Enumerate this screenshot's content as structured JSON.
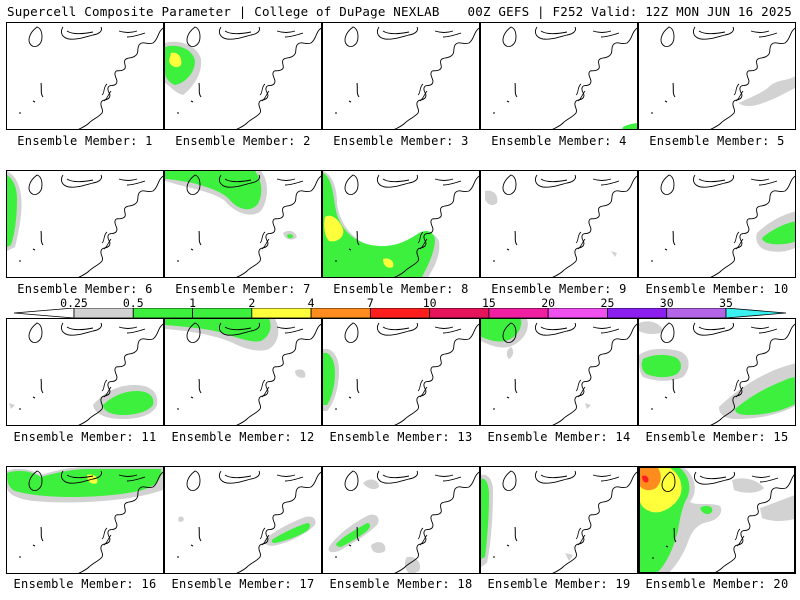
{
  "header": {
    "title_left": "Supercell Composite Parameter | College of DuPage NEXLAB",
    "title_right": "00Z GEFS | F252 Valid: 12Z MON JUN 16 2025"
  },
  "colorbar": {
    "ticks": [
      "0.25",
      "0.5",
      "1",
      "2",
      "4",
      "7",
      "10",
      "15",
      "20",
      "25",
      "30",
      "35"
    ],
    "colors": [
      "#d2d2d2",
      "#3ef03e",
      "#3ef03e",
      "#ffff3c",
      "#ff8c1e",
      "#ff1e1e",
      "#e6145a",
      "#f01ea0",
      "#f050f0",
      "#8c1ef0",
      "#b464e6",
      "#3cf0f0"
    ]
  },
  "members": [
    {
      "label": "Ensemble Member: 1",
      "selected": false
    },
    {
      "label": "Ensemble Member: 2",
      "selected": false
    },
    {
      "label": "Ensemble Member: 3",
      "selected": false
    },
    {
      "label": "Ensemble Member: 4",
      "selected": false
    },
    {
      "label": "Ensemble Member: 5",
      "selected": false
    },
    {
      "label": "Ensemble Member: 6",
      "selected": false
    },
    {
      "label": "Ensemble Member: 7",
      "selected": false
    },
    {
      "label": "Ensemble Member: 8",
      "selected": false
    },
    {
      "label": "Ensemble Member: 9",
      "selected": false
    },
    {
      "label": "Ensemble Member: 10",
      "selected": false
    },
    {
      "label": "Ensemble Member: 11",
      "selected": false
    },
    {
      "label": "Ensemble Member: 12",
      "selected": false
    },
    {
      "label": "Ensemble Member: 13",
      "selected": false
    },
    {
      "label": "Ensemble Member: 14",
      "selected": false
    },
    {
      "label": "Ensemble Member: 15",
      "selected": false
    },
    {
      "label": "Ensemble Member: 16",
      "selected": false
    },
    {
      "label": "Ensemble Member: 17",
      "selected": false
    },
    {
      "label": "Ensemble Member: 18",
      "selected": false
    },
    {
      "label": "Ensemble Member: 19",
      "selected": false
    },
    {
      "label": "Ensemble Member: 20",
      "selected": true
    }
  ]
}
